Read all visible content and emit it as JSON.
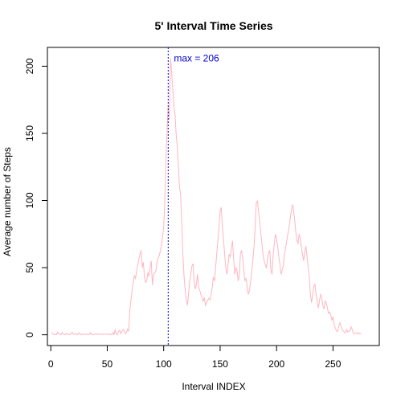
{
  "chart_data": {
    "type": "line",
    "title": "5' Interval Time Series",
    "xlabel": "Interval INDEX",
    "ylabel": "Average number of Steps",
    "xlim": [
      -3,
      291
    ],
    "ylim": [
      -8,
      214
    ],
    "x_ticks": [
      0,
      50,
      100,
      150,
      200,
      250
    ],
    "y_ticks": [
      0,
      50,
      100,
      150,
      200
    ],
    "grid": false,
    "series": [
      {
        "color": "#FFB6C1",
        "x_start": 1,
        "values": [
          1.7,
          0.3,
          0.1,
          0.2,
          0.1,
          2.1,
          0.5,
          0.8,
          0,
          1.5,
          0.8,
          0.3,
          0,
          1.2,
          0.4,
          0,
          0.3,
          1.1,
          2.0,
          0.4,
          0.2,
          1.0,
          0,
          0.2,
          1.5,
          0.7,
          0,
          0.4,
          0.3,
          0.2,
          0.5,
          0.1,
          0.6,
          0.3,
          1.8,
          0.2,
          0.4,
          0,
          0.4,
          0.9,
          0.2,
          0.4,
          0.6,
          0.3,
          0.2,
          0.2,
          0.6,
          0.4,
          0.6,
          0.1,
          0.3,
          0.6,
          0,
          0,
          1.6,
          0.2,
          3.6,
          0.5,
          0,
          2.5,
          3.5,
          0.9,
          2.4,
          3.7,
          2.9,
          0.8,
          1.5,
          4.3,
          3.0,
          18.0,
          25.5,
          33.0,
          39.0,
          44.0,
          42.0,
          47.0,
          52.0,
          56.0,
          60.0,
          63.0,
          50.0,
          54.0,
          43.0,
          39.0,
          40.0,
          46.0,
          44.0,
          50.0,
          55.0,
          37.0,
          45.0,
          46.0,
          47.0,
          53.0,
          57.0,
          59.0,
          62.0,
          67.0,
          73.0,
          80.0,
          100.0,
          130.0,
          152.0,
          170.0,
          160.0,
          206.0,
          196.0,
          184.0,
          170.0,
          165.0,
          150.0,
          140.0,
          126.0,
          110.0,
          105.0,
          84.0,
          60.0,
          44.0,
          34.0,
          26.0,
          22.0,
          30.0,
          40.0,
          45.0,
          51.0,
          53.0,
          40.0,
          34.0,
          38.0,
          45.0,
          35.0,
          33.0,
          30.0,
          27.0,
          25.0,
          28.0,
          22.0,
          24.0,
          26.0,
          27.0,
          26.0,
          30.0,
          35.0,
          43.0,
          40.0,
          50.0,
          60.0,
          70.0,
          80.0,
          92.0,
          95.0,
          80.0,
          71.0,
          60.0,
          50.0,
          45.0,
          52.0,
          60.0,
          58.0,
          65.0,
          70.0,
          56.0,
          45.0,
          50.0,
          48.0,
          40.0,
          45.0,
          60.0,
          63.0,
          57.0,
          48.0,
          40.0,
          42.0,
          35.0,
          30.0,
          33.0,
          40.0,
          47.0,
          55.0,
          65.0,
          80.0,
          98.0,
          100.0,
          92.0,
          85.0,
          76.0,
          68.0,
          60.0,
          55.0,
          52.0,
          50.0,
          57.0,
          61.0,
          63.0,
          48.0,
          45.0,
          60.0,
          68.0,
          75.0,
          71.0,
          66.0,
          58.0,
          52.0,
          45.0,
          48.0,
          52.0,
          60.0,
          65.0,
          70.0,
          75.0,
          80.0,
          86.0,
          92.0,
          97.0,
          93.0,
          86.0,
          77.0,
          70.0,
          68.0,
          75.0,
          72.0,
          65.0,
          60.0,
          55.0,
          62.0,
          66.0,
          58.0,
          50.0,
          43.0,
          30.0,
          24.0,
          30.0,
          36.0,
          38.0,
          30.0,
          25.0,
          20.0,
          25.0,
          30.0,
          28.0,
          22.0,
          19.0,
          25.0,
          24.0,
          20.0,
          16.0,
          17.0,
          15.0,
          11.0,
          13.0,
          8.0,
          5.0,
          3.0,
          2.5,
          6.0,
          9.0,
          7.0,
          4.0,
          3.0,
          2.0,
          1.5,
          4.0,
          2.2,
          2.6,
          3.0,
          6.0,
          4.0,
          1.0,
          0.8,
          1.3,
          1.5,
          0.6,
          1.4,
          0.8,
          1.2
        ]
      }
    ],
    "vline": {
      "x": 104,
      "color": "#0000CD"
    },
    "annotation": {
      "text": "max =  206",
      "x": 109,
      "y": 206,
      "color": "#0000CD"
    }
  }
}
